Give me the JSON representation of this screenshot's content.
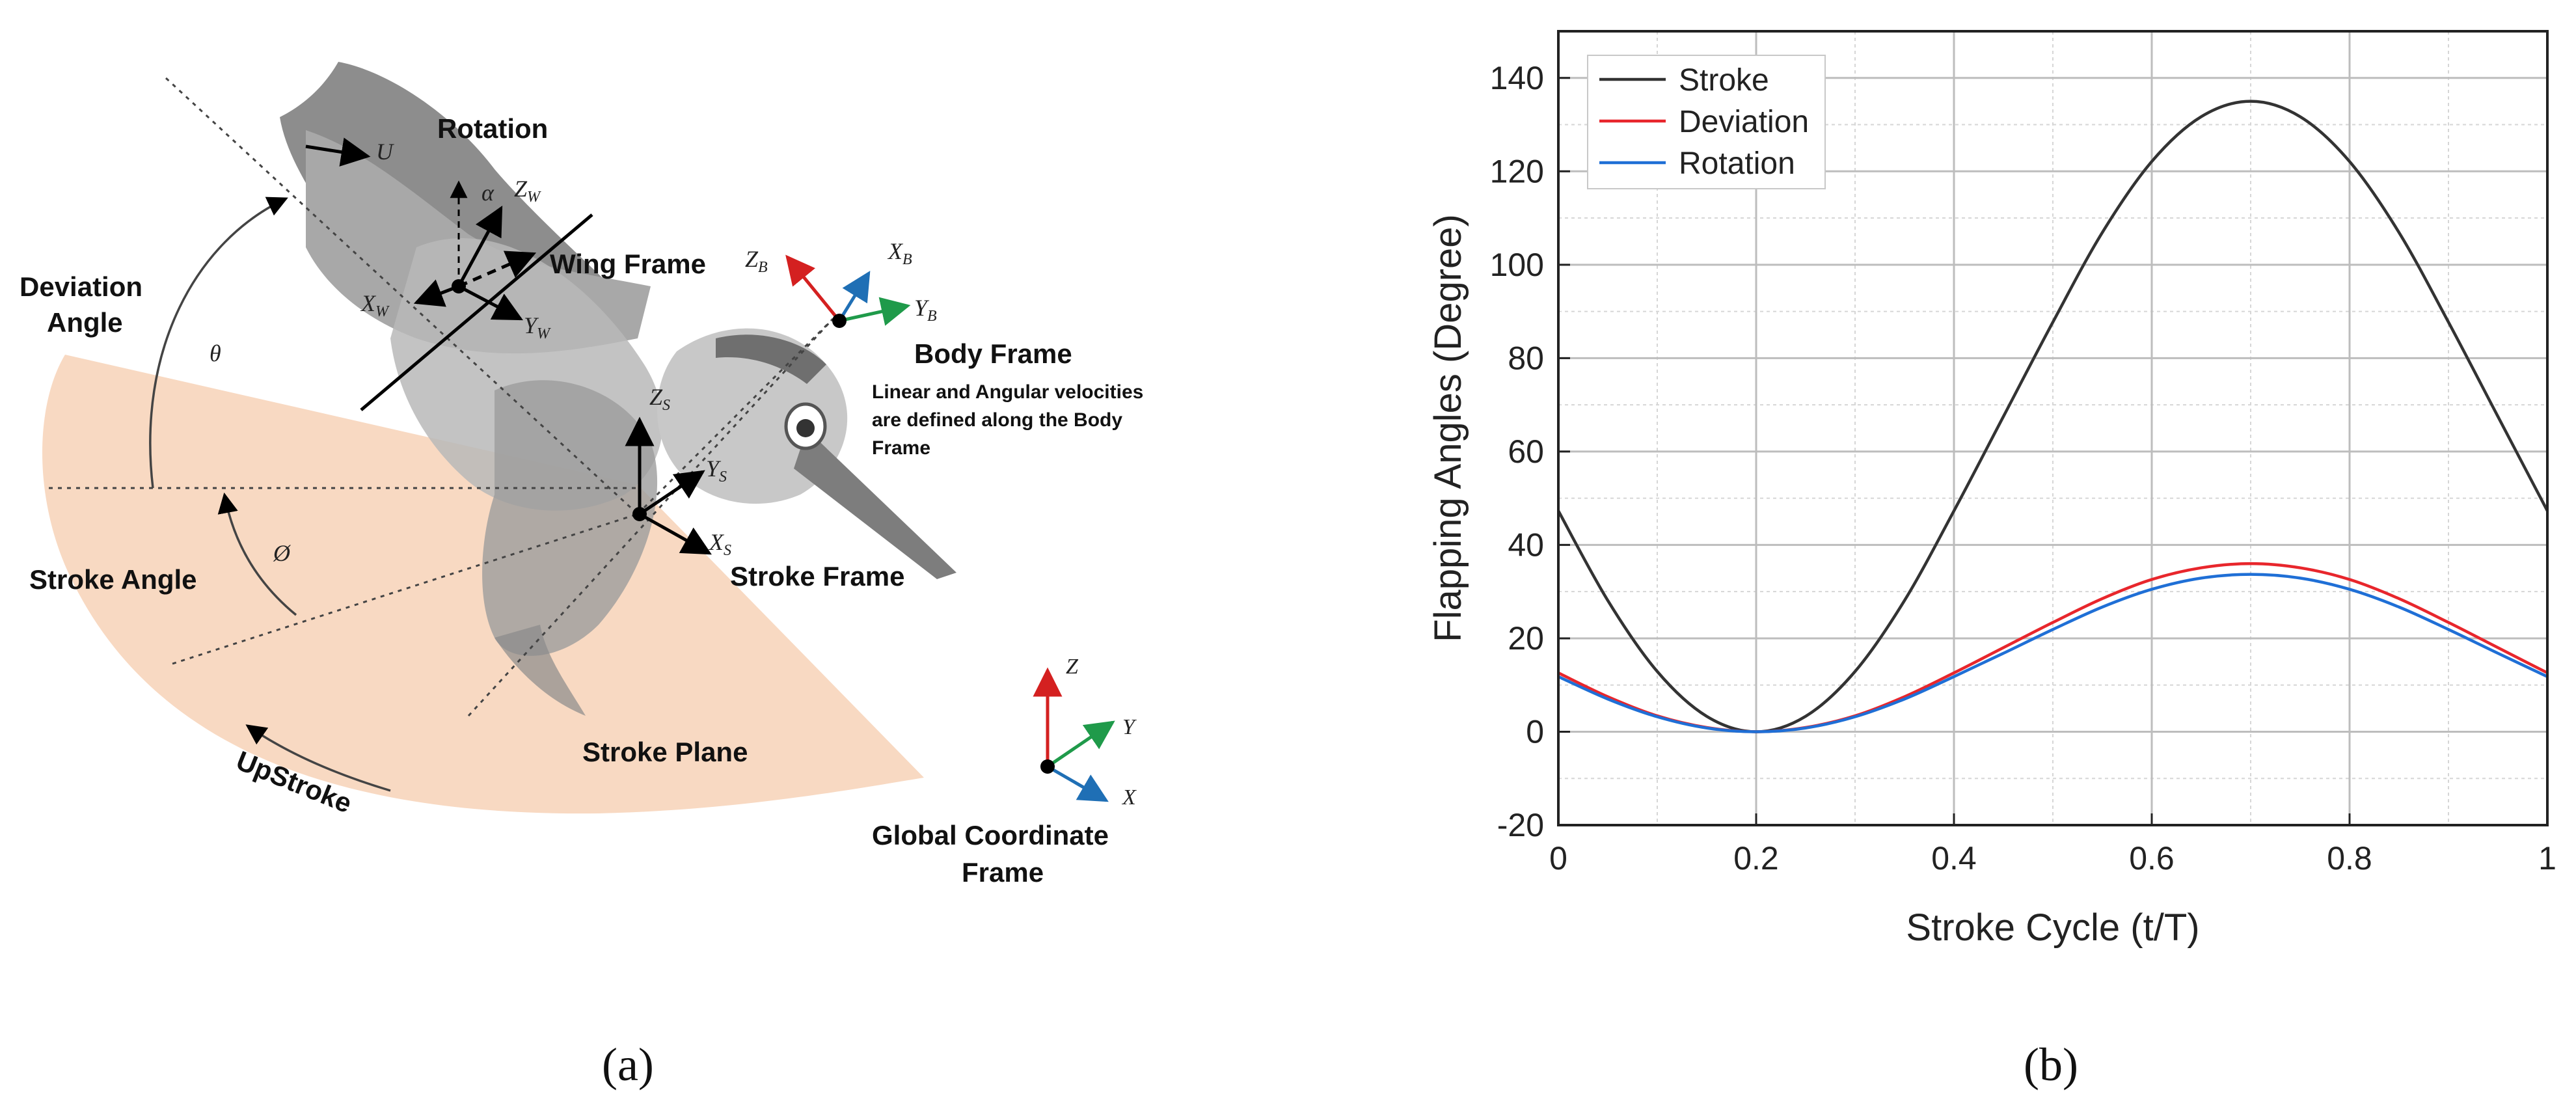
{
  "panel_a": {
    "label": "(a)",
    "labels": {
      "rotation": "Rotation",
      "u": "U",
      "alpha": "α",
      "zw": "Z",
      "zw_sub": "W",
      "wing_frame": "Wing Frame",
      "xw": "X",
      "xw_sub": "W",
      "yw": "Y",
      "yw_sub": "W",
      "deviation_1": "Deviation",
      "deviation_2": "Angle",
      "theta": "θ",
      "zb": "Z",
      "zb_sub": "B",
      "xb": "X",
      "xb_sub": "B",
      "yb": "Y",
      "yb_sub": "B",
      "body_frame": "Body Frame",
      "velocity_note_1": "Linear and Angular velocities",
      "velocity_note_2": "are defined along the Body",
      "velocity_note_3": "Frame",
      "zs": "Z",
      "zs_sub": "S",
      "ys": "Y",
      "ys_sub": "S",
      "xs": "X",
      "xs_sub": "S",
      "stroke_frame": "Stroke Frame",
      "phi": "Ø",
      "stroke_angle": "Stroke Angle",
      "stroke_plane": "Stroke Plane",
      "upstroke": "UpStroke",
      "gz": "Z",
      "gy": "Y",
      "gx": "X",
      "global_1": "Global Coordinate",
      "global_2": "Frame"
    },
    "colors": {
      "stroke_plane": "#f8d9c2",
      "bird_dark": "#8a8a8a",
      "bird_light": "#cfcfcf",
      "axis_red": "#d42020",
      "axis_green": "#1f9a4a",
      "axis_blue": "#1f6fb5"
    }
  },
  "panel_b": {
    "label": "(b)",
    "chart_data": {
      "type": "line",
      "xlabel": "Stroke Cycle (t/T)",
      "ylabel": "Flapping Angles (Degree)",
      "xlim": [
        0,
        1
      ],
      "ylim": [
        -20,
        150
      ],
      "xticks": [
        "0",
        "0.2",
        "0.4",
        "0.6",
        "0.8",
        "1"
      ],
      "yticks": [
        "-20",
        "0",
        "20",
        "40",
        "60",
        "80",
        "100",
        "120",
        "140"
      ],
      "grid": true,
      "legend_position": "top-left",
      "series": [
        {
          "name": "Stroke",
          "color": "#333333",
          "x": [
            0,
            0.05,
            0.1,
            0.15,
            0.2,
            0.25,
            0.3,
            0.35,
            0.4,
            0.45,
            0.5,
            0.55,
            0.6,
            0.65,
            0.7,
            0.75,
            0.8,
            0.85,
            0.9,
            0.95,
            1.0
          ],
          "y": [
            47.3,
            28.1,
            12.9,
            3.3,
            0,
            3.3,
            12.9,
            28.1,
            47.3,
            67.5,
            87.7,
            106.9,
            122.1,
            131.7,
            135,
            131.7,
            122.1,
            106.9,
            87.7,
            67.5,
            47.3
          ]
        },
        {
          "name": "Deviation",
          "color": "#e8262c",
          "x": [
            0,
            0.05,
            0.1,
            0.15,
            0.2,
            0.25,
            0.3,
            0.35,
            0.4,
            0.45,
            0.5,
            0.55,
            0.6,
            0.65,
            0.7,
            0.75,
            0.8,
            0.85,
            0.9,
            0.95,
            1.0
          ],
          "y": [
            12.6,
            7.5,
            3.4,
            0.9,
            0,
            0.9,
            3.4,
            7.5,
            12.6,
            18,
            23.4,
            28.5,
            32.6,
            35.1,
            36,
            35.1,
            32.6,
            28.5,
            23.4,
            18,
            12.6
          ]
        },
        {
          "name": "Rotation",
          "color": "#1f6fd6",
          "x": [
            0,
            0.05,
            0.1,
            0.15,
            0.2,
            0.25,
            0.3,
            0.35,
            0.4,
            0.45,
            0.5,
            0.55,
            0.6,
            0.65,
            0.7,
            0.75,
            0.8,
            0.85,
            0.9,
            0.95,
            1.0
          ],
          "y": [
            11.8,
            7.0,
            3.2,
            0.8,
            0,
            0.8,
            3.2,
            7.0,
            11.8,
            16.8,
            21.9,
            26.7,
            30.5,
            32.9,
            33.7,
            32.9,
            30.5,
            26.7,
            21.9,
            16.8,
            11.8
          ]
        }
      ]
    }
  }
}
